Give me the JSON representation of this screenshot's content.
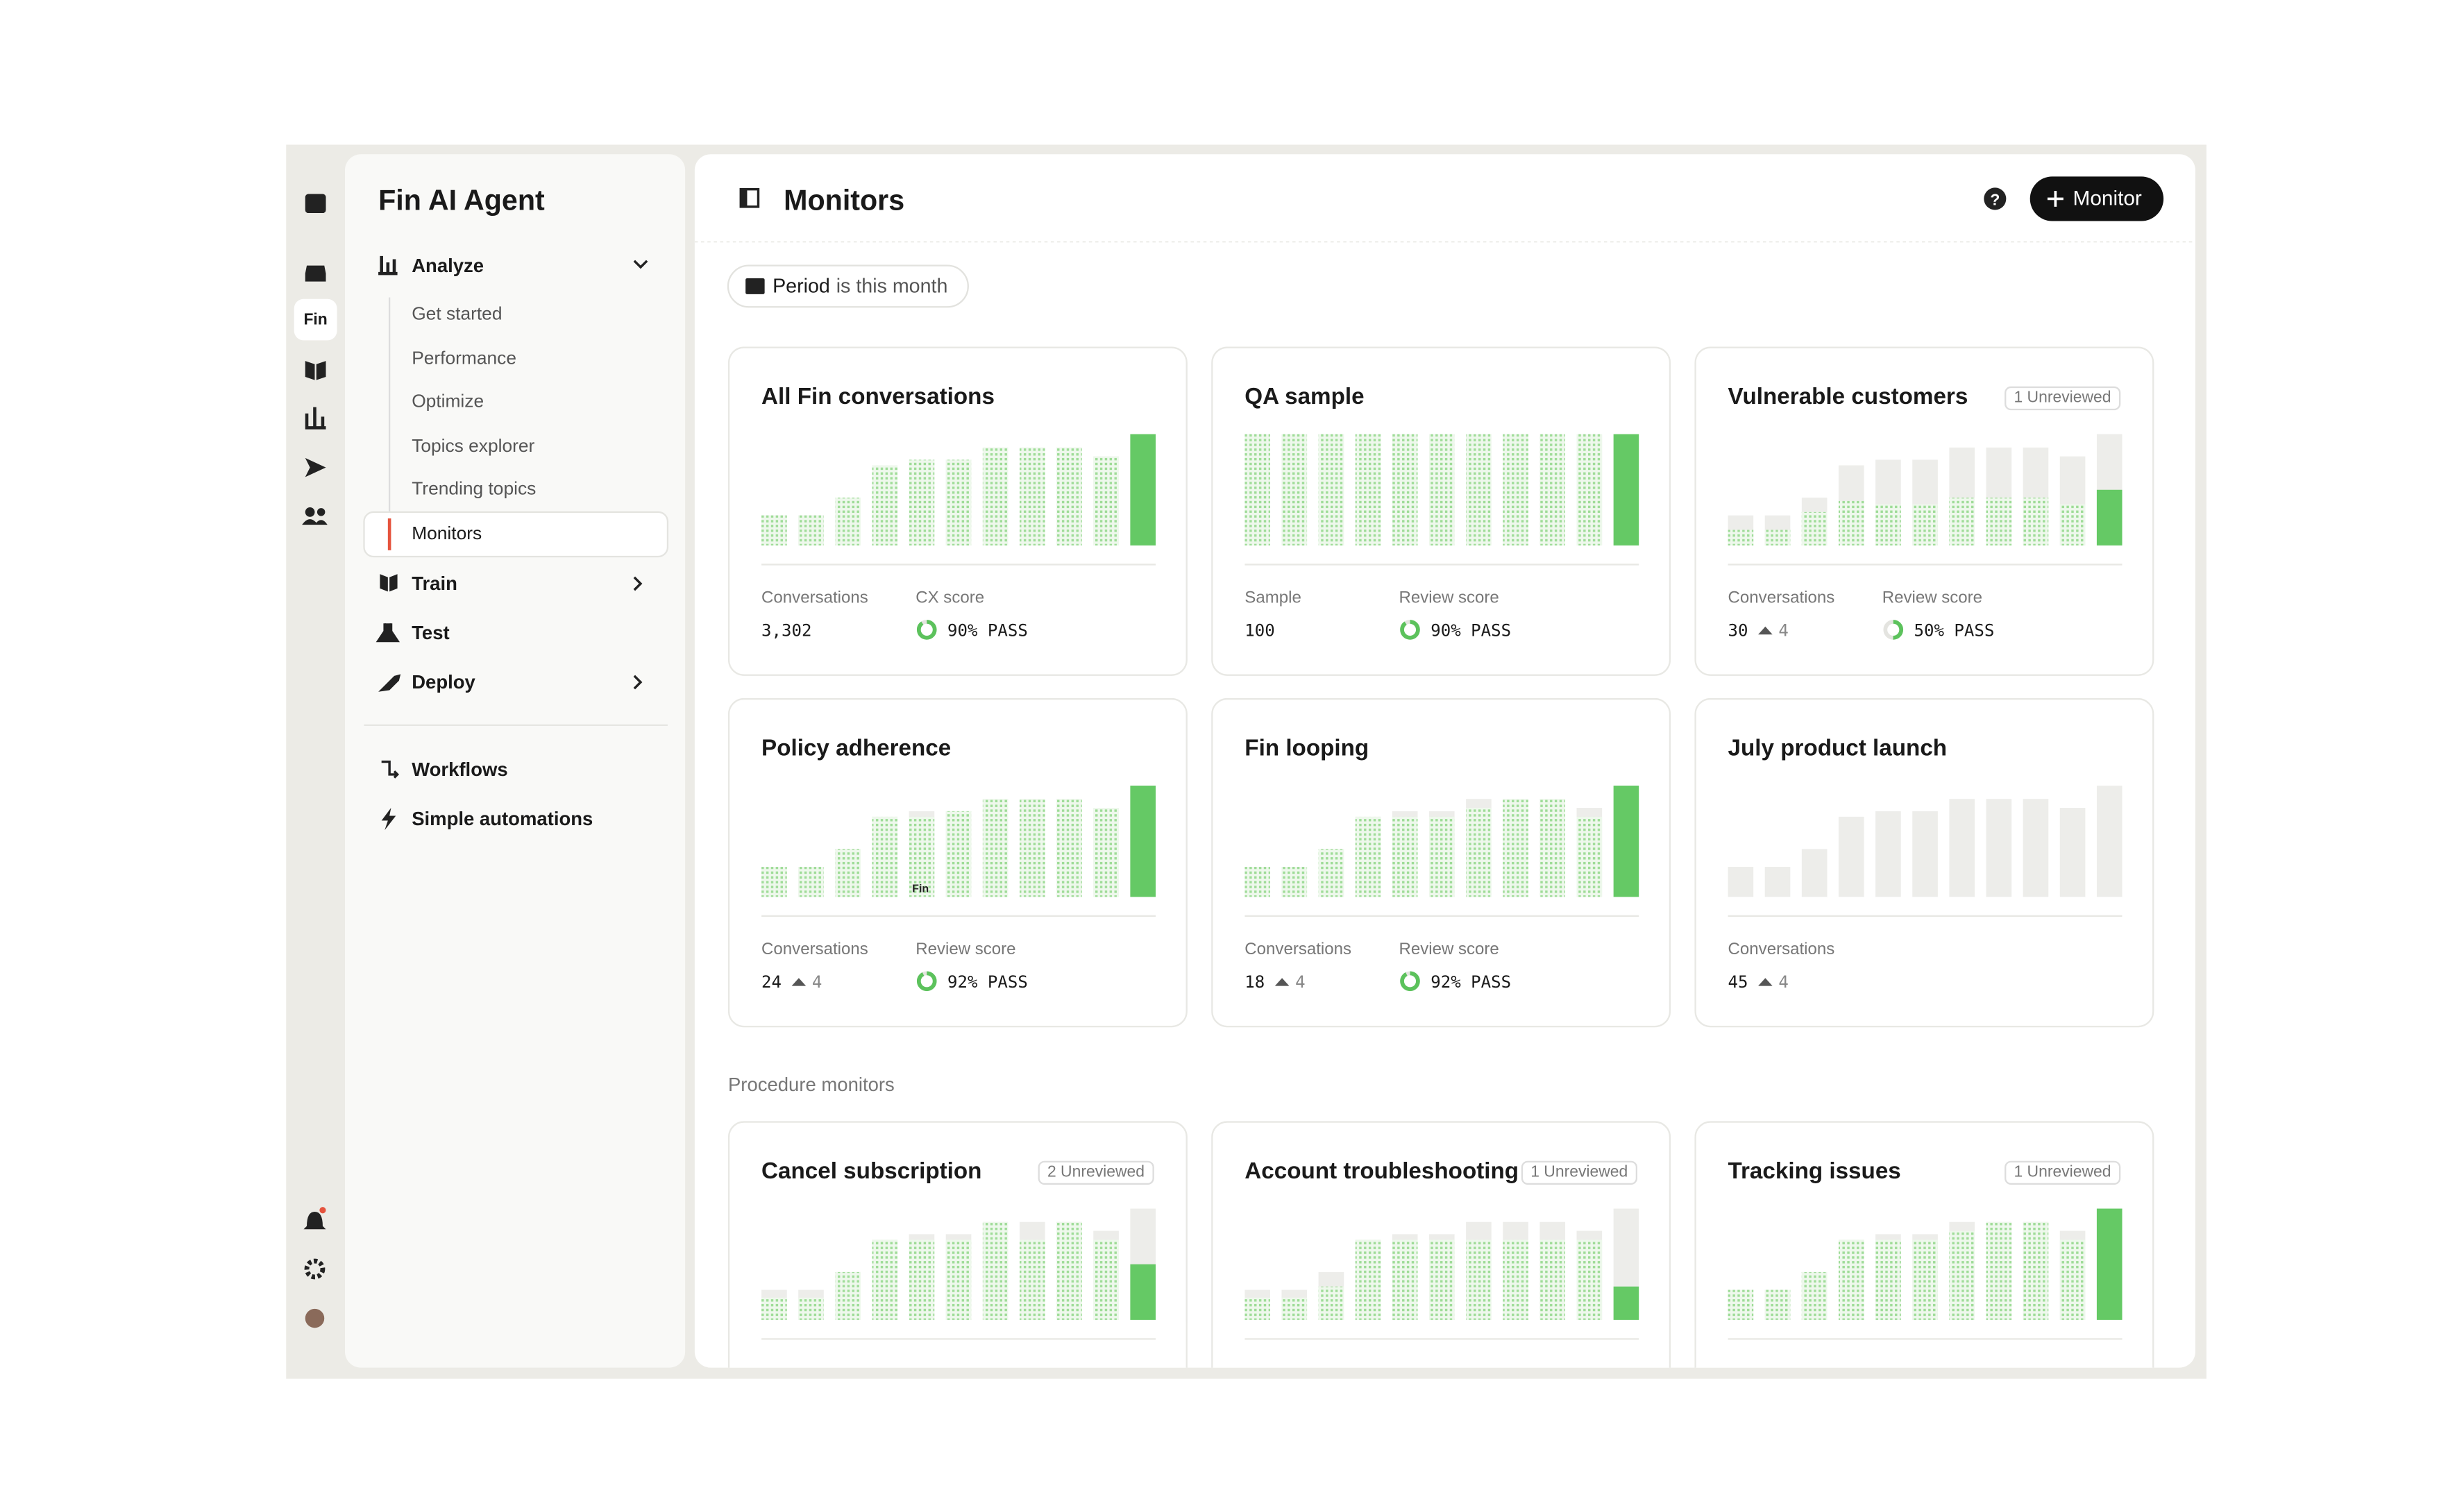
{
  "rail": {
    "active": "Fin"
  },
  "sidebar": {
    "title": "Fin AI Agent",
    "analyze": {
      "label": "Analyze",
      "items": [
        "Get started",
        "Performance",
        "Optimize",
        "Topics explorer",
        "Trending topics",
        "Monitors"
      ]
    },
    "nav": [
      "Train",
      "Test",
      "Deploy"
    ],
    "extra": [
      "Workflows",
      "Simple automations"
    ]
  },
  "header": {
    "title": "Monitors",
    "button": "Monitor"
  },
  "filter": {
    "key": "Period",
    "rest": "is this month"
  },
  "cards": [
    {
      "title": "All Fin conversations",
      "total": [
        27,
        27,
        43,
        72,
        77,
        77,
        88,
        88,
        88,
        80,
        100
      ],
      "pass": [
        27,
        27,
        43,
        72,
        77,
        77,
        88,
        88,
        88,
        80,
        100
      ],
      "stats": [
        {
          "label": "Conversations",
          "value": "3,302"
        },
        {
          "label": "CX score",
          "score": {
            "value": 90,
            "label": "90% PASS"
          }
        }
      ]
    },
    {
      "title": "QA sample",
      "total": [
        100,
        100,
        100,
        100,
        100,
        100,
        100,
        100,
        100,
        100,
        100
      ],
      "pass": [
        100,
        100,
        100,
        100,
        100,
        100,
        100,
        100,
        100,
        100,
        100
      ],
      "stats": [
        {
          "label": "Sample",
          "value": "100"
        },
        {
          "label": "Review score",
          "score": {
            "value": 90,
            "label": "90% PASS"
          }
        }
      ]
    },
    {
      "title": "Vulnerable customers",
      "badge": "1 Unreviewed",
      "total": [
        27,
        27,
        43,
        72,
        77,
        77,
        88,
        88,
        88,
        80,
        100
      ],
      "pass": [
        14,
        14,
        30,
        40,
        37,
        37,
        43,
        43,
        43,
        37,
        50
      ],
      "stats": [
        {
          "label": "Conversations",
          "value": "30",
          "delta": "4"
        },
        {
          "label": "Review score",
          "score": {
            "value": 50,
            "label": "50% PASS"
          }
        }
      ]
    },
    {
      "title": "Policy adherence",
      "note": "Fin",
      "total": [
        27,
        27,
        43,
        72,
        77,
        77,
        88,
        88,
        88,
        80,
        100
      ],
      "pass": [
        27,
        27,
        43,
        72,
        72,
        77,
        88,
        88,
        88,
        80,
        100
      ],
      "stats": [
        {
          "label": "Conversations",
          "value": "24",
          "delta": "4"
        },
        {
          "label": "Review score",
          "score": {
            "value": 92,
            "label": "92% PASS"
          }
        }
      ]
    },
    {
      "title": "Fin looping",
      "total": [
        27,
        27,
        43,
        72,
        77,
        77,
        88,
        88,
        88,
        80,
        100
      ],
      "pass": [
        27,
        27,
        43,
        72,
        72,
        72,
        80,
        88,
        88,
        72,
        100
      ],
      "stats": [
        {
          "label": "Conversations",
          "value": "18",
          "delta": "4"
        },
        {
          "label": "Review score",
          "score": {
            "value": 92,
            "label": "92% PASS"
          }
        }
      ]
    },
    {
      "title": "July product launch",
      "total": [
        27,
        27,
        43,
        72,
        77,
        77,
        88,
        88,
        88,
        80,
        100
      ],
      "pass": [
        0,
        0,
        0,
        0,
        0,
        0,
        0,
        0,
        0,
        0,
        0
      ],
      "stats": [
        {
          "label": "Conversations",
          "value": "45",
          "delta": "4"
        }
      ]
    }
  ],
  "procedure_heading": "Procedure monitors",
  "procedure_cards": [
    {
      "title": "Cancel subscription",
      "badge": "2 Unreviewed",
      "total": [
        27,
        27,
        43,
        72,
        77,
        77,
        88,
        88,
        88,
        80,
        100
      ],
      "pass": [
        20,
        20,
        43,
        72,
        72,
        72,
        88,
        72,
        88,
        72,
        50
      ]
    },
    {
      "title": "Account troubleshooting",
      "badge": "1 Unreviewed",
      "total": [
        27,
        27,
        43,
        72,
        77,
        77,
        88,
        88,
        88,
        80,
        100
      ],
      "pass": [
        20,
        20,
        30,
        72,
        72,
        72,
        72,
        72,
        72,
        72,
        30
      ]
    },
    {
      "title": "Tracking issues",
      "badge": "1 Unreviewed",
      "total": [
        27,
        27,
        43,
        72,
        77,
        77,
        88,
        88,
        88,
        80,
        100
      ],
      "pass": [
        27,
        27,
        43,
        72,
        72,
        72,
        80,
        88,
        88,
        72,
        100
      ]
    }
  ]
}
